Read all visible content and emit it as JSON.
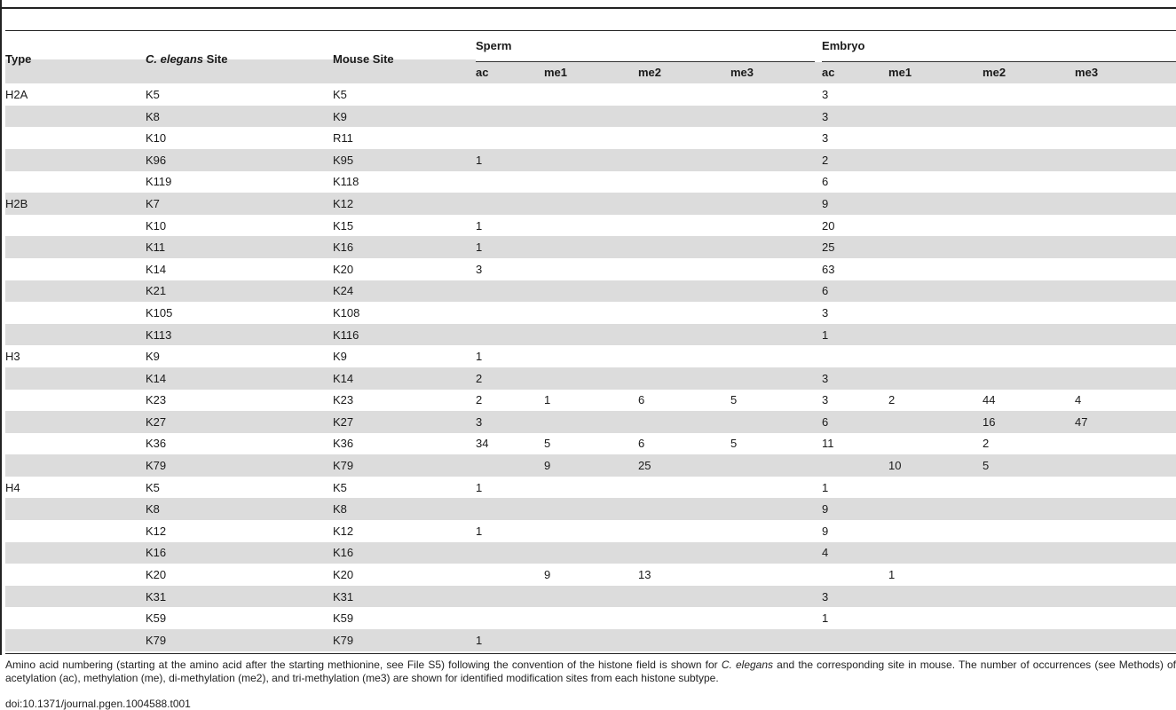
{
  "table": {
    "headers": {
      "type": "Type",
      "celegans_site_italic": "C. elegans",
      "celegans_site_suffix": " Site",
      "mouse_site": "Mouse Site",
      "sperm": "Sperm",
      "embryo": "Embryo",
      "sub": [
        "ac",
        "me1",
        "me2",
        "me3",
        "ac",
        "me1",
        "me2",
        "me3"
      ]
    },
    "rows": [
      [
        "H2A",
        "K5",
        "K5",
        "",
        "",
        "",
        "",
        "3",
        "",
        "",
        ""
      ],
      [
        "",
        "K8",
        "K9",
        "",
        "",
        "",
        "",
        "3",
        "",
        "",
        ""
      ],
      [
        "",
        "K10",
        "R11",
        "",
        "",
        "",
        "",
        "3",
        "",
        "",
        ""
      ],
      [
        "",
        "K96",
        "K95",
        "1",
        "",
        "",
        "",
        "2",
        "",
        "",
        ""
      ],
      [
        "",
        "K119",
        "K118",
        "",
        "",
        "",
        "",
        "6",
        "",
        "",
        ""
      ],
      [
        "H2B",
        "K7",
        "K12",
        "",
        "",
        "",
        "",
        "9",
        "",
        "",
        ""
      ],
      [
        "",
        "K10",
        "K15",
        "1",
        "",
        "",
        "",
        "20",
        "",
        "",
        ""
      ],
      [
        "",
        "K11",
        "K16",
        "1",
        "",
        "",
        "",
        "25",
        "",
        "",
        ""
      ],
      [
        "",
        "K14",
        "K20",
        "3",
        "",
        "",
        "",
        "63",
        "",
        "",
        ""
      ],
      [
        "",
        "K21",
        "K24",
        "",
        "",
        "",
        "",
        "6",
        "",
        "",
        ""
      ],
      [
        "",
        "K105",
        "K108",
        "",
        "",
        "",
        "",
        "3",
        "",
        "",
        ""
      ],
      [
        "",
        "K113",
        "K116",
        "",
        "",
        "",
        "",
        "1",
        "",
        "",
        ""
      ],
      [
        "H3",
        "K9",
        "K9",
        "1",
        "",
        "",
        "",
        "",
        "",
        "",
        ""
      ],
      [
        "",
        "K14",
        "K14",
        "2",
        "",
        "",
        "",
        "3",
        "",
        "",
        ""
      ],
      [
        "",
        "K23",
        "K23",
        "2",
        "1",
        "6",
        "5",
        "3",
        "2",
        "44",
        "4"
      ],
      [
        "",
        "K27",
        "K27",
        "3",
        "",
        "",
        "",
        "6",
        "",
        "16",
        "47"
      ],
      [
        "",
        "K36",
        "K36",
        "34",
        "5",
        "6",
        "5",
        "11",
        "",
        "2",
        ""
      ],
      [
        "",
        "K79",
        "K79",
        "",
        "9",
        "25",
        "",
        "",
        "10",
        "5",
        ""
      ],
      [
        "H4",
        "K5",
        "K5",
        "1",
        "",
        "",
        "",
        "1",
        "",
        "",
        ""
      ],
      [
        "",
        "K8",
        "K8",
        "",
        "",
        "",
        "",
        "9",
        "",
        "",
        ""
      ],
      [
        "",
        "K12",
        "K12",
        "1",
        "",
        "",
        "",
        "9",
        "",
        "",
        ""
      ],
      [
        "",
        "K16",
        "K16",
        "",
        "",
        "",
        "",
        "4",
        "",
        "",
        ""
      ],
      [
        "",
        "K20",
        "K20",
        "",
        "9",
        "13",
        "",
        "",
        "1",
        "",
        ""
      ],
      [
        "",
        "K31",
        "K31",
        "",
        "",
        "",
        "",
        "3",
        "",
        "",
        ""
      ],
      [
        "",
        "K59",
        "K59",
        "",
        "",
        "",
        "",
        "1",
        "",
        "",
        ""
      ],
      [
        "",
        "K79",
        "K79",
        "1",
        "",
        "",
        "",
        "",
        "",
        "",
        ""
      ]
    ]
  },
  "caption": {
    "part1": "Amino acid numbering (starting at the amino acid after the starting methionine, see File S5) following the convention of the histone field is shown for ",
    "italic1": "C. elegans",
    "part2": " and the corresponding site in mouse. The number of occurrences (see Methods) of acetylation (ac), methylation (me), di-methylation (me2), and tri-methylation (me3) are shown for identified modification sites from each histone subtype."
  },
  "doi": "doi:10.1371/journal.pgen.1004588.t001",
  "colors": {
    "shade": "#dcdcdc",
    "rule": "#222222",
    "text": "#1a1a1a"
  }
}
